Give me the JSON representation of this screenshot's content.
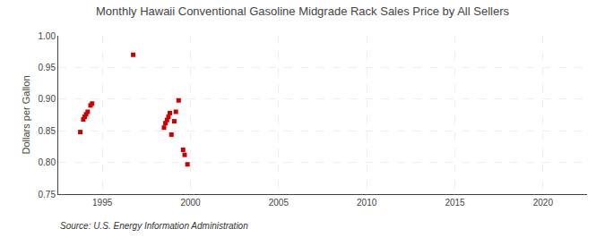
{
  "chart_data": {
    "type": "scatter",
    "title": "Monthly Hawaii Conventional Gasoline Midgrade Rack Sales Price by All Sellers",
    "ylabel": "Dollars per Gallon",
    "annotations": [
      "Source: U.S. Energy Information Administration"
    ],
    "x": [
      1993.75,
      1993.92,
      1994.0,
      1994.08,
      1994.17,
      1994.33,
      1994.42,
      1996.75,
      1998.5,
      1998.58,
      1998.67,
      1998.75,
      1998.83,
      1998.92,
      1999.08,
      1999.17,
      1999.33,
      1999.58,
      1999.67,
      1999.83
    ],
    "values": [
      0.848,
      0.868,
      0.872,
      0.876,
      0.88,
      0.89,
      0.893,
      0.97,
      0.855,
      0.862,
      0.867,
      0.872,
      0.878,
      0.844,
      0.865,
      0.88,
      0.898,
      0.82,
      0.812,
      0.797
    ],
    "color": "#cc0000",
    "marker": "square",
    "xlim": [
      1992.5,
      2022.5
    ],
    "ylim": [
      0.75,
      1.0
    ],
    "xticks": [
      1995,
      2000,
      2005,
      2010,
      2015,
      2020
    ],
    "yticks": [
      0.75,
      {
        "value": 0.8,
        "label": "0.80"
      },
      0.85,
      {
        "value": 0.9,
        "label": "0.90"
      },
      0.95,
      {
        "value": 1.0,
        "label": "1.00"
      }
    ],
    "grid": true
  }
}
